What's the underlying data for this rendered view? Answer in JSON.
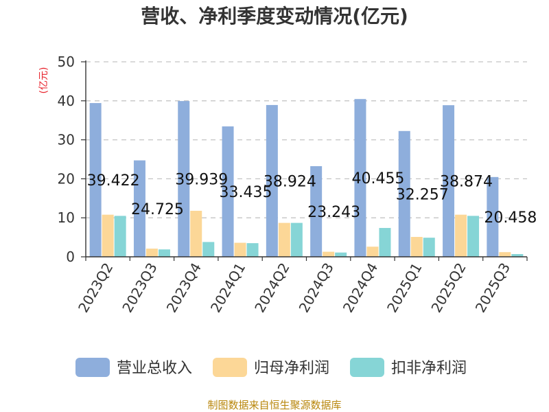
{
  "chart_data": {
    "type": "bar",
    "title": "营收、净利季度变动情况(亿元)",
    "ylabel": "(亿元)",
    "xlabel": "",
    "ylim": [
      0,
      50
    ],
    "yticks": [
      0,
      10,
      20,
      30,
      40,
      50
    ],
    "grid": true,
    "legend_position": "bottom",
    "categories": [
      "2023Q2",
      "2023Q3",
      "2023Q4",
      "2024Q1",
      "2024Q2",
      "2024Q3",
      "2024Q4",
      "2025Q1",
      "2025Q2",
      "2025Q3"
    ],
    "series": [
      {
        "name": "营业总收入",
        "color": "#8eaedc",
        "values": [
          39.422,
          24.725,
          39.939,
          33.435,
          38.924,
          23.243,
          40.455,
          32.257,
          38.874,
          20.458
        ]
      },
      {
        "name": "归母净利润",
        "color": "#fcd797",
        "values": [
          10.8,
          2.1,
          11.8,
          3.6,
          8.7,
          1.3,
          2.6,
          5.1,
          10.8,
          1.2
        ]
      },
      {
        "name": "扣非净利润",
        "color": "#86d5d6",
        "values": [
          10.5,
          1.9,
          3.8,
          3.5,
          8.7,
          1.1,
          7.4,
          4.9,
          10.5,
          0.7
        ]
      }
    ],
    "data_labels": [
      "39.422",
      "24.725",
      "39.939",
      "33.435",
      "38.924",
      "23.243",
      "40.455",
      "32.257",
      "38.874",
      "20.458"
    ],
    "source": "制图数据来自恒生聚源数据库"
  }
}
